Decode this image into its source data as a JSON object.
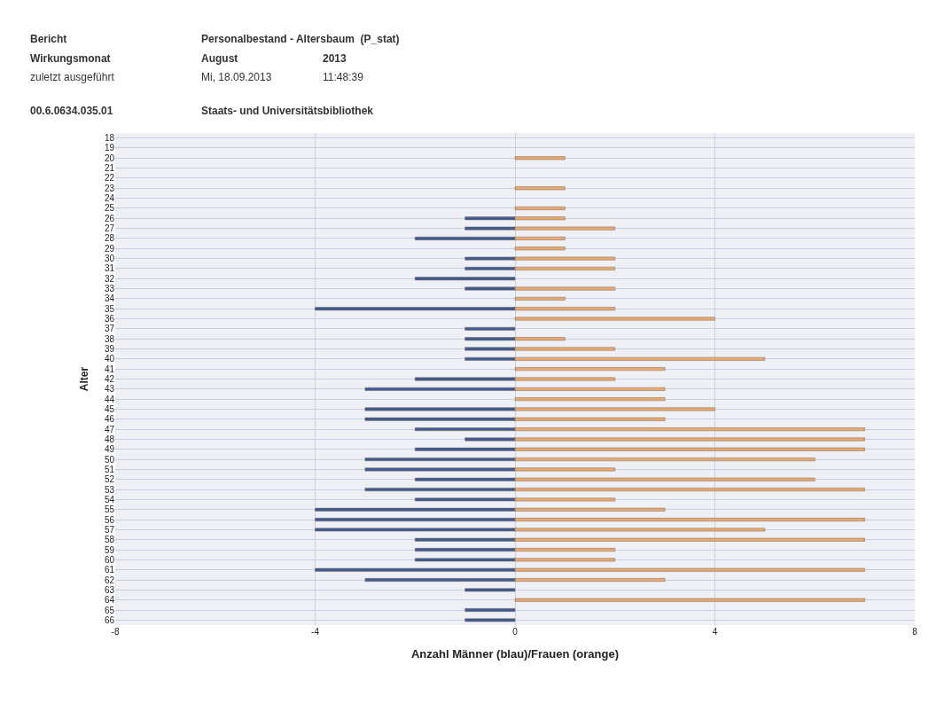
{
  "chart_data": {
    "type": "bar",
    "orientation": "horizontal",
    "xlabel": "Anzahl Männer (blau)/Frauen (orange)",
    "ylabel": "Alter",
    "categories": [
      "18",
      "19",
      "20",
      "21",
      "22",
      "23",
      "24",
      "25",
      "26",
      "27",
      "28",
      "29",
      "30",
      "31",
      "32",
      "33",
      "34",
      "35",
      "36",
      "37",
      "38",
      "39",
      "40",
      "41",
      "42",
      "43",
      "44",
      "45",
      "46",
      "47",
      "48",
      "49",
      "50",
      "51",
      "52",
      "53",
      "54",
      "55",
      "56",
      "57",
      "58",
      "59",
      "60",
      "61",
      "62",
      "63",
      "64",
      "65",
      "66"
    ],
    "series": [
      {
        "color": "#3f5a8f",
        "values": [
          null,
          null,
          null,
          null,
          null,
          null,
          null,
          null,
          -1,
          -1,
          -2,
          null,
          -1,
          -1,
          -2,
          -1,
          null,
          -4,
          null,
          -1,
          -1,
          -1,
          -1,
          null,
          -2,
          -3,
          null,
          -3,
          -3,
          -2,
          -1,
          -2,
          -3,
          -3,
          -2,
          -3,
          -2,
          -4,
          -4,
          -4,
          -2,
          -2,
          -2,
          -4,
          -3,
          -1,
          null,
          -1,
          -1
        ]
      },
      {
        "color": "#e8a870",
        "values": [
          null,
          null,
          1,
          null,
          null,
          1,
          null,
          1,
          1,
          2,
          1,
          1,
          2,
          2,
          null,
          2,
          1,
          2,
          4,
          null,
          1,
          2,
          5,
          3,
          2,
          3,
          3,
          4,
          3,
          7,
          7,
          7,
          6,
          2,
          6,
          7,
          2,
          3,
          7,
          5,
          7,
          2,
          2,
          7,
          3,
          null,
          7,
          null,
          null
        ]
      }
    ],
    "xlim": [
      -8,
      8
    ],
    "xticks": [
      -8,
      -4,
      0,
      4,
      8
    ],
    "grid": true,
    "stacked": true,
    "annotations": [
      "Bericht",
      "Personalbestand - Altersbaum  (P_stat)",
      "Wirkungsmonat",
      "August",
      "2013",
      "zuletzt ausgeführt",
      "Mi, 18.09.2013",
      "11:48:39",
      "00.6.0634.035.01",
      "Staats- und Universitätsbibliothek"
    ]
  }
}
